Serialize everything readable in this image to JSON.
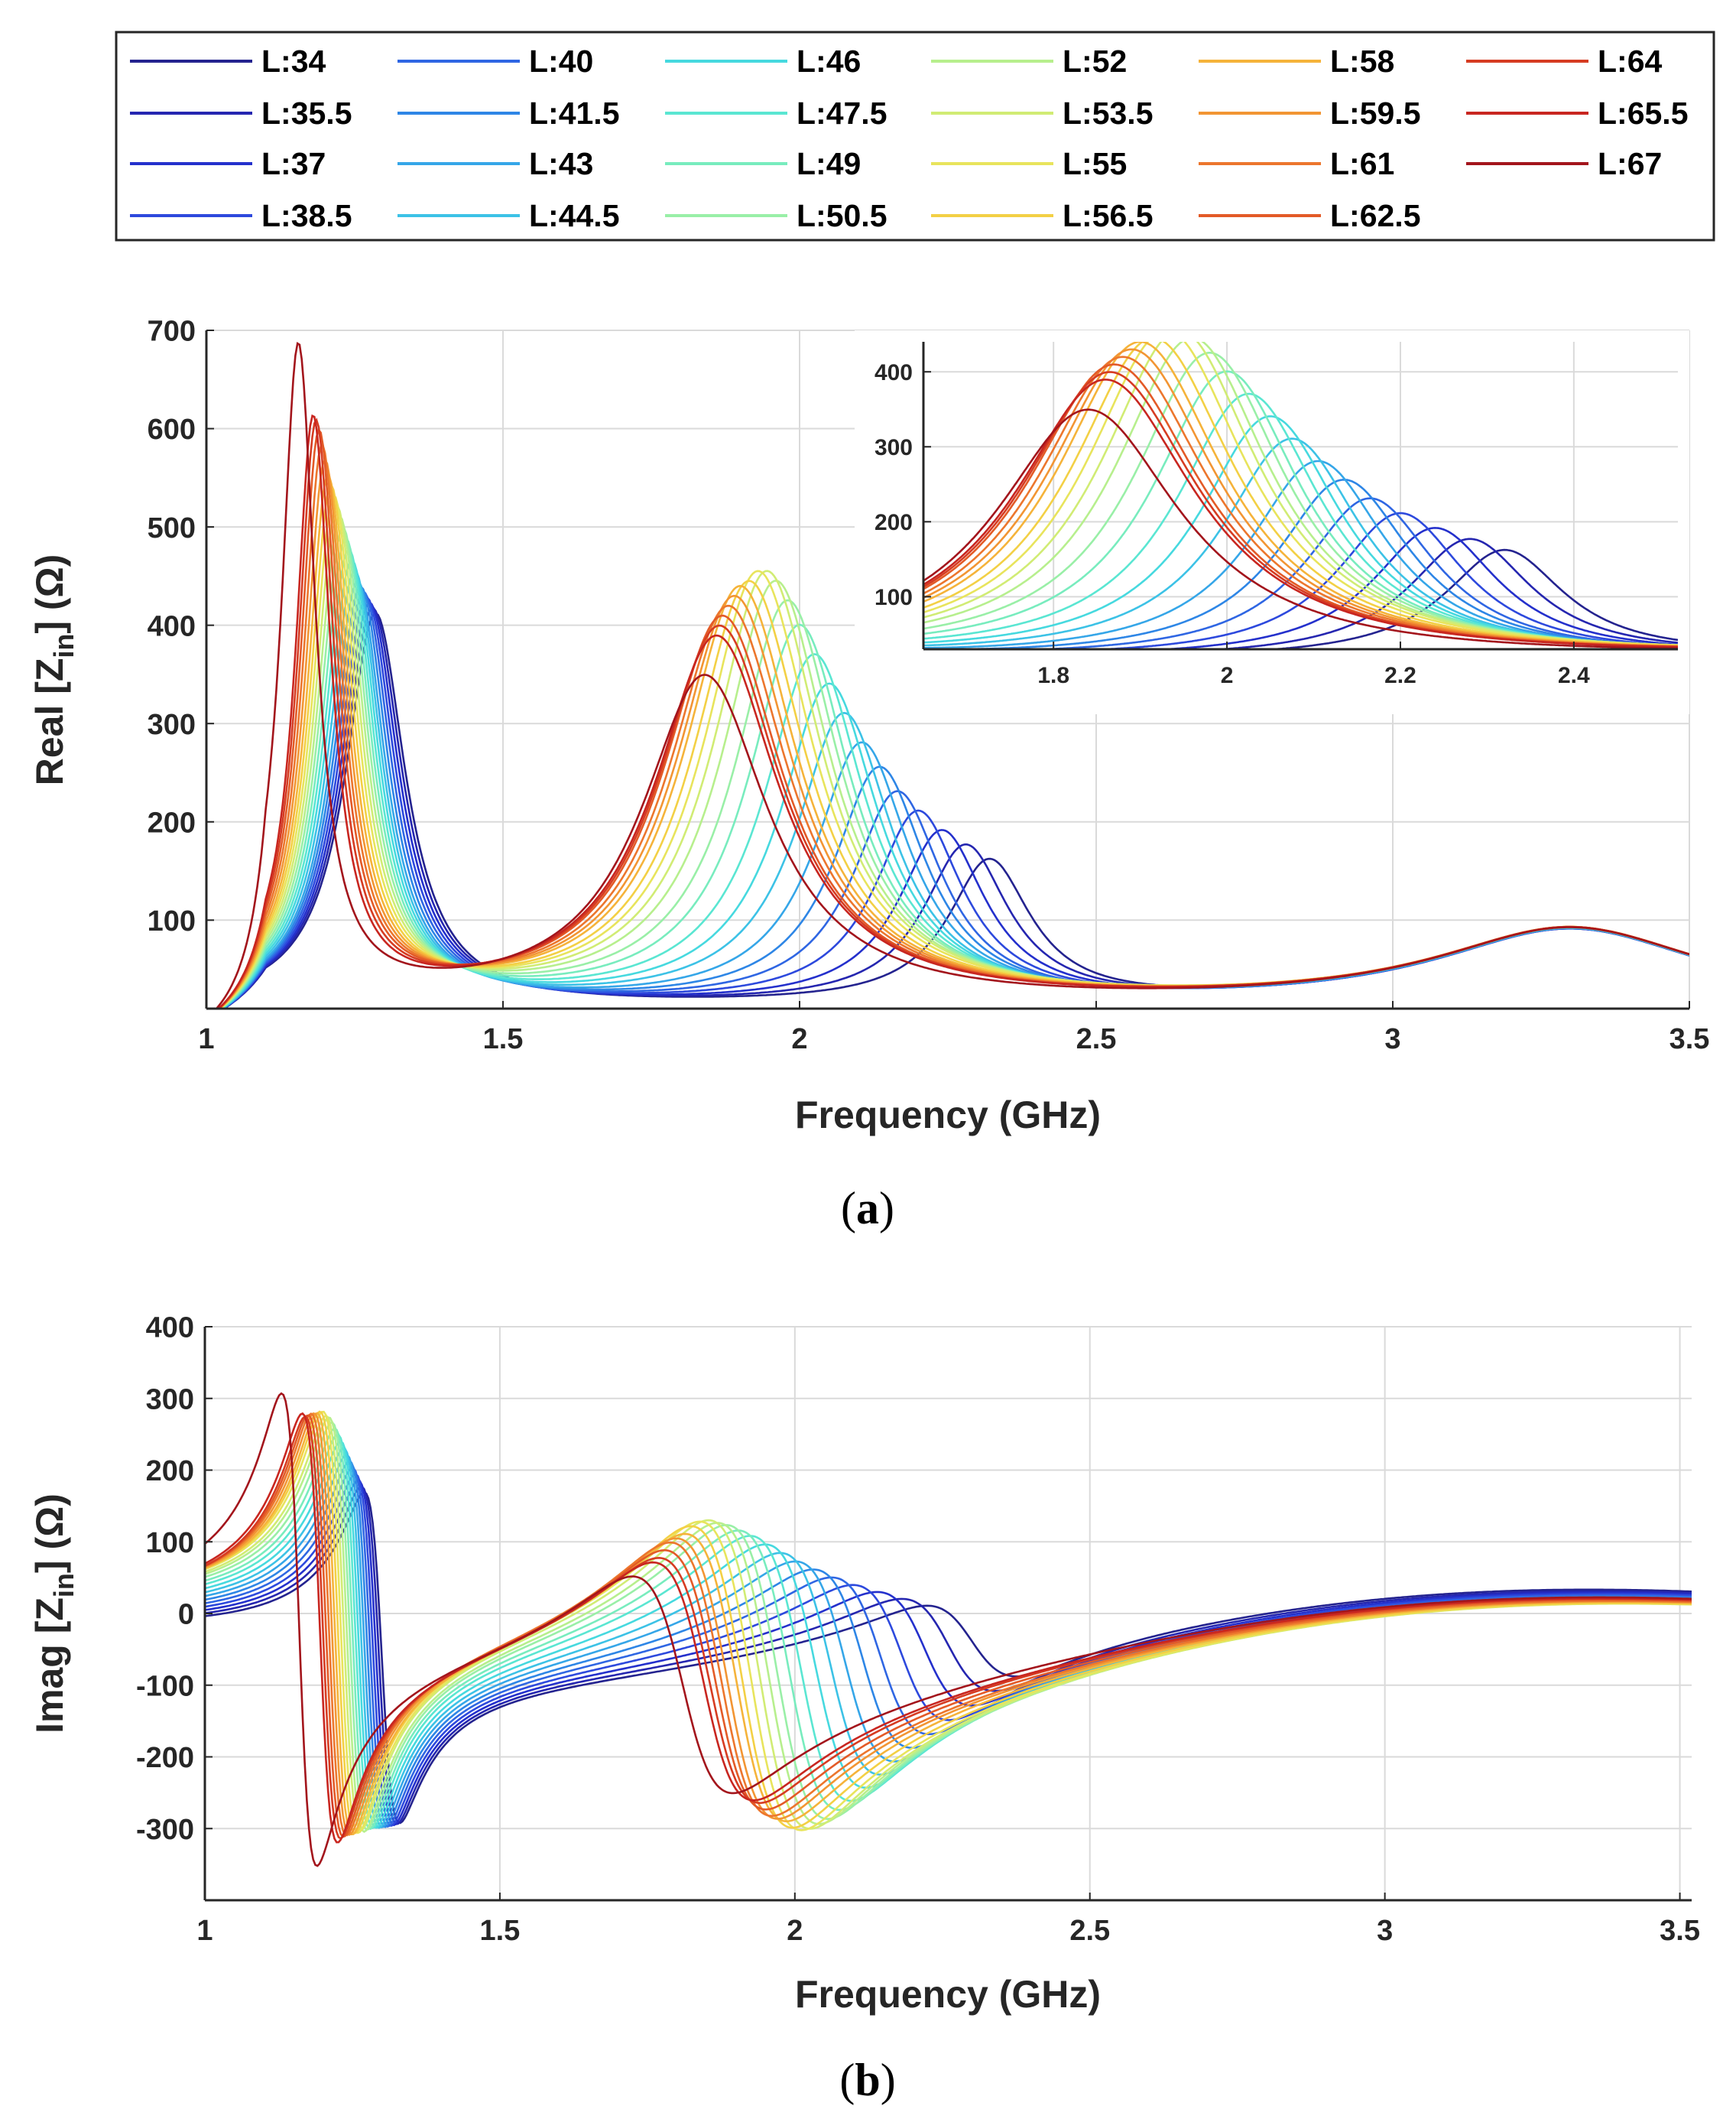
{
  "legend": {
    "labels": [
      "L:34",
      "L:35.5",
      "L:37",
      "L:38.5",
      "L:40",
      "L:41.5",
      "L:43",
      "L:44.5",
      "L:46",
      "L:47.5",
      "L:49",
      "L:50.5",
      "L:52",
      "L:53.5",
      "L:55",
      "L:56.5",
      "L:58",
      "L:59.5",
      "L:61",
      "L:62.5",
      "L:64",
      "L:65.5",
      "L:67"
    ],
    "colors": [
      "#24238f",
      "#2526b0",
      "#2430cc",
      "#2d49dd",
      "#2f66e3",
      "#2e86e6",
      "#35a6e8",
      "#3cc2e6",
      "#46d9df",
      "#5ae6d2",
      "#78ecbe",
      "#99efa7",
      "#b7ef8d",
      "#d1ec74",
      "#e8e45c",
      "#f3d045",
      "#f5b33a",
      "#f29533",
      "#ec762d",
      "#e35a27",
      "#d63c22",
      "#c82620",
      "#a3151c"
    ]
  },
  "chart_data": [
    {
      "id": "a",
      "type": "line",
      "caption": "(a)",
      "caption_letter": "a",
      "xlabel": "Frequency (GHz)",
      "ylabel": "Real [Z_in] (Ω)",
      "ylabel_main": "Real [Z",
      "ylabel_sub": "in",
      "ylabel_end": "] (Ω)",
      "xlim": [
        1,
        3.5
      ],
      "ylim": [
        10,
        700
      ],
      "xticks": [
        1,
        1.5,
        2,
        2.5,
        3,
        3.5
      ],
      "xtick_labels": [
        "1",
        "1.5",
        "2",
        "2.5",
        "3",
        "3.5"
      ],
      "yticks": [
        100,
        200,
        300,
        400,
        500,
        600,
        700
      ],
      "ytick_labels": [
        "100",
        "200",
        "300",
        "400",
        "500",
        "600",
        "700"
      ],
      "grid": true,
      "series_params": {
        "peak1_freq_ghz": [
          1.285,
          1.28,
          1.275,
          1.27,
          1.265,
          1.26,
          1.255,
          1.25,
          1.245,
          1.24,
          1.235,
          1.23,
          1.225,
          1.22,
          1.215,
          1.21,
          1.205,
          1.2,
          1.195,
          1.19,
          1.185,
          1.18,
          1.155
        ],
        "peak1_ohm": [
          400,
          405,
          410,
          415,
          420,
          425,
          430,
          440,
          450,
          460,
          470,
          480,
          490,
          500,
          510,
          520,
          530,
          545,
          560,
          575,
          585,
          590,
          665
        ],
        "peak2_freq_ghz": [
          2.32,
          2.28,
          2.24,
          2.2,
          2.165,
          2.135,
          2.105,
          2.075,
          2.05,
          2.025,
          2.0,
          1.98,
          1.96,
          1.945,
          1.93,
          1.915,
          1.9,
          1.89,
          1.88,
          1.87,
          1.865,
          1.86,
          1.84
        ],
        "peak2_ohm": [
          145,
          160,
          175,
          195,
          215,
          240,
          265,
          295,
          325,
          355,
          385,
          410,
          430,
          440,
          440,
          430,
          425,
          415,
          405,
          395,
          385,
          375,
          335
        ]
      },
      "inset": {
        "xlim": [
          1.65,
          2.52
        ],
        "ylim": [
          30,
          440
        ],
        "xticks": [
          1.8,
          2,
          2.2,
          2.4
        ],
        "xtick_labels": [
          "1.8",
          "2",
          "2.2",
          "2.4"
        ],
        "yticks": [
          100,
          200,
          300,
          400
        ],
        "ytick_labels": [
          "100",
          "200",
          "300",
          "400"
        ]
      }
    },
    {
      "id": "b",
      "type": "line",
      "caption": "(b)",
      "caption_letter": "b",
      "xlabel": "Frequency (GHz)",
      "ylabel": "Imag [Z_in] (Ω)",
      "ylabel_main": "Imag [Z",
      "ylabel_sub": "in",
      "ylabel_end": "] (Ω)",
      "xlim": [
        1,
        3.52
      ],
      "ylim": [
        -400,
        400
      ],
      "xticks": [
        1,
        1.5,
        2,
        2.5,
        3,
        3.5
      ],
      "xtick_labels": [
        "1",
        "1.5",
        "2",
        "2.5",
        "3",
        "3.5"
      ],
      "yticks": [
        -300,
        -200,
        -100,
        0,
        100,
        200,
        300,
        400
      ],
      "ytick_labels": [
        "-300",
        "-200",
        "-100",
        "0",
        "100",
        "200",
        "300",
        "400"
      ],
      "grid": true,
      "series_params": {
        "res1_freq_ghz": [
          1.3,
          1.295,
          1.29,
          1.285,
          1.28,
          1.275,
          1.27,
          1.265,
          1.26,
          1.255,
          1.25,
          1.245,
          1.24,
          1.235,
          1.23,
          1.225,
          1.22,
          1.215,
          1.21,
          1.205,
          1.2,
          1.195,
          1.16
        ],
        "res1_amp_ohm": [
          230,
          235,
          240,
          245,
          250,
          255,
          260,
          265,
          270,
          275,
          280,
          285,
          290,
          290,
          295,
          295,
          295,
          295,
          295,
          295,
          295,
          300,
          330
        ],
        "res2_freq_ghz": [
          2.3,
          2.26,
          2.22,
          2.18,
          2.145,
          2.115,
          2.085,
          2.06,
          2.035,
          2.01,
          1.99,
          1.97,
          1.955,
          1.94,
          1.925,
          1.91,
          1.9,
          1.885,
          1.875,
          1.865,
          1.855,
          1.845,
          1.81
        ],
        "res2_amp_ohm": [
          60,
          75,
          90,
          105,
          120,
          135,
          150,
          165,
          180,
          195,
          205,
          215,
          220,
          225,
          225,
          220,
          210,
          205,
          200,
          190,
          180,
          175,
          160
        ]
      }
    }
  ]
}
